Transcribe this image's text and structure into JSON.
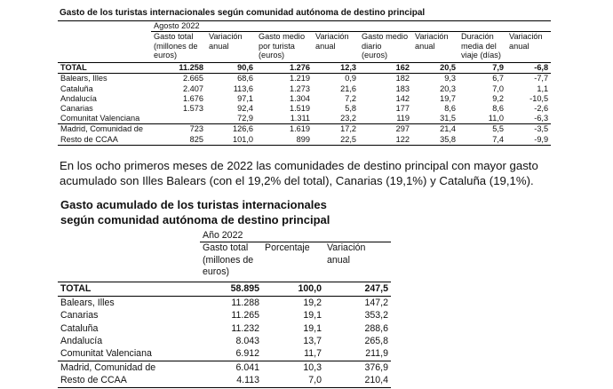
{
  "table1": {
    "title": "Gasto de los turistas internacionales según comunidad autónoma de destino principal",
    "period": "Agosto 2022",
    "headers": [
      "Gasto total (millones de euros)",
      "Variación anual",
      "Gasto medio por turista (euros)",
      "Variación anual",
      "Gasto medio diario (euros)",
      "Variación anual",
      "Duración media del viaje (días)",
      "Variación anual"
    ],
    "rows": [
      [
        "TOTAL",
        "11.258",
        "90,6",
        "1.276",
        "12,3",
        "162",
        "20,5",
        "7,9",
        "-6,8"
      ],
      [
        "Balears, Illes",
        "2.665",
        "68,6",
        "1.219",
        "0,9",
        "182",
        "9,3",
        "6,7",
        "-7,7"
      ],
      [
        "Cataluña",
        "2.407",
        "113,6",
        "1.273",
        "21,6",
        "183",
        "20,3",
        "7,0",
        "1,1"
      ],
      [
        "Andalucía",
        "1.676",
        "97,1",
        "1.304",
        "7,2",
        "142",
        "19,7",
        "9,2",
        "-10,5"
      ],
      [
        "Canarias",
        "1.573",
        "92,4",
        "1.519",
        "5,8",
        "177",
        "8,6",
        "8,6",
        "-2,6"
      ],
      [
        "Comunitat Valenciana",
        null,
        "72,9",
        "1.311",
        "23,2",
        "119",
        "31,5",
        "11,0",
        "-6,3"
      ],
      [
        "Madrid, Comunidad de",
        "723",
        "126,6",
        "1.619",
        "17,2",
        "297",
        "21,4",
        "5,5",
        "-3,5"
      ],
      [
        "Resto de CCAA",
        "825",
        "101,0",
        "899",
        "22,5",
        "122",
        "35,8",
        "7,4",
        "-9,9"
      ]
    ]
  },
  "paragraph": "En los ocho primeros meses de 2022 las comunidades de destino principal con mayor gasto acumulado son Illes Balears (con el 19,2% del total), Canarias (19,1%) y Cataluña (19,1%).",
  "table2": {
    "title": "Gasto acumulado de los turistas internacionales según comunidad autónoma de destino principal",
    "period": "Año 2022",
    "headers": [
      "Gasto total (millones de euros)",
      "Porcentaje",
      "Variación anual"
    ],
    "rows": [
      [
        "TOTAL",
        "58.895",
        "100,0",
        "247,5"
      ],
      [
        "Balears, Illes",
        "11.288",
        "19,2",
        "147,2"
      ],
      [
        "Canarias",
        "11.265",
        "19,1",
        "353,2"
      ],
      [
        "Cataluña",
        "11.232",
        "19,1",
        "288,6"
      ],
      [
        "Andalucía",
        "8.043",
        "13,7",
        "265,8"
      ],
      [
        "Comunitat Valenciana",
        "6.912",
        "11,7",
        "211,9"
      ],
      [
        "Madrid, Comunidad de",
        "6.041",
        "10,3",
        "376,9"
      ],
      [
        "Resto de CCAA",
        "4.113",
        "7,0",
        "210,4"
      ]
    ]
  }
}
